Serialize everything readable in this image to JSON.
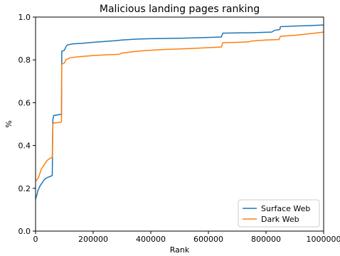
{
  "chart_data": {
    "type": "line",
    "title": "Malicious landing pages ranking",
    "xlabel": "Rank",
    "ylabel": "%",
    "xlim": [
      0,
      1000000
    ],
    "ylim": [
      0.0,
      1.0
    ],
    "grid": false,
    "legend_position": "lower-right",
    "x_ticks": [
      0,
      200000,
      400000,
      600000,
      800000,
      1000000
    ],
    "x_tick_labels": [
      "0",
      "200000",
      "400000",
      "600000",
      "800000",
      "1000000"
    ],
    "y_ticks": [
      0.0,
      0.2,
      0.4,
      0.6,
      0.8,
      1.0
    ],
    "y_tick_labels": [
      "0.0",
      "0.2",
      "0.4",
      "0.6",
      "0.8",
      "1.0"
    ],
    "series": [
      {
        "name": "Surface Web",
        "color": "#1f77b4",
        "points": [
          [
            0,
            0.15
          ],
          [
            2000,
            0.16
          ],
          [
            5000,
            0.17
          ],
          [
            8000,
            0.19
          ],
          [
            12000,
            0.2
          ],
          [
            15000,
            0.21
          ],
          [
            20000,
            0.22
          ],
          [
            25000,
            0.23
          ],
          [
            30000,
            0.24
          ],
          [
            35000,
            0.245
          ],
          [
            40000,
            0.25
          ],
          [
            50000,
            0.255
          ],
          [
            58000,
            0.26
          ],
          [
            60000,
            0.52
          ],
          [
            63000,
            0.54
          ],
          [
            85000,
            0.545
          ],
          [
            90000,
            0.545
          ],
          [
            91000,
            0.84
          ],
          [
            100000,
            0.845
          ],
          [
            105000,
            0.86
          ],
          [
            110000,
            0.87
          ],
          [
            130000,
            0.875
          ],
          [
            160000,
            0.877
          ],
          [
            200000,
            0.882
          ],
          [
            250000,
            0.887
          ],
          [
            280000,
            0.89
          ],
          [
            300000,
            0.893
          ],
          [
            350000,
            0.897
          ],
          [
            400000,
            0.899
          ],
          [
            450000,
            0.9
          ],
          [
            500000,
            0.901
          ],
          [
            550000,
            0.903
          ],
          [
            600000,
            0.905
          ],
          [
            645000,
            0.907
          ],
          [
            650000,
            0.925
          ],
          [
            700000,
            0.926
          ],
          [
            750000,
            0.927
          ],
          [
            800000,
            0.929
          ],
          [
            820000,
            0.93
          ],
          [
            830000,
            0.938
          ],
          [
            848000,
            0.942
          ],
          [
            850000,
            0.955
          ],
          [
            900000,
            0.958
          ],
          [
            950000,
            0.96
          ],
          [
            1000000,
            0.963
          ]
        ]
      },
      {
        "name": "Dark Web",
        "color": "#ff7f0e",
        "points": [
          [
            0,
            0.235
          ],
          [
            5000,
            0.24
          ],
          [
            10000,
            0.25
          ],
          [
            15000,
            0.27
          ],
          [
            20000,
            0.29
          ],
          [
            25000,
            0.3
          ],
          [
            30000,
            0.31
          ],
          [
            35000,
            0.32
          ],
          [
            40000,
            0.33
          ],
          [
            45000,
            0.335
          ],
          [
            50000,
            0.34
          ],
          [
            58000,
            0.345
          ],
          [
            60000,
            0.5
          ],
          [
            63000,
            0.505
          ],
          [
            85000,
            0.508
          ],
          [
            90000,
            0.51
          ],
          [
            91000,
            0.78
          ],
          [
            100000,
            0.785
          ],
          [
            105000,
            0.8
          ],
          [
            120000,
            0.81
          ],
          [
            150000,
            0.815
          ],
          [
            200000,
            0.82
          ],
          [
            250000,
            0.824
          ],
          [
            290000,
            0.826
          ],
          [
            300000,
            0.832
          ],
          [
            350000,
            0.84
          ],
          [
            400000,
            0.845
          ],
          [
            450000,
            0.849
          ],
          [
            500000,
            0.851
          ],
          [
            550000,
            0.854
          ],
          [
            600000,
            0.857
          ],
          [
            645000,
            0.86
          ],
          [
            650000,
            0.88
          ],
          [
            700000,
            0.882
          ],
          [
            740000,
            0.884
          ],
          [
            750000,
            0.888
          ],
          [
            800000,
            0.893
          ],
          [
            845000,
            0.895
          ],
          [
            850000,
            0.91
          ],
          [
            900000,
            0.915
          ],
          [
            950000,
            0.922
          ],
          [
            1000000,
            0.93
          ]
        ]
      }
    ]
  }
}
